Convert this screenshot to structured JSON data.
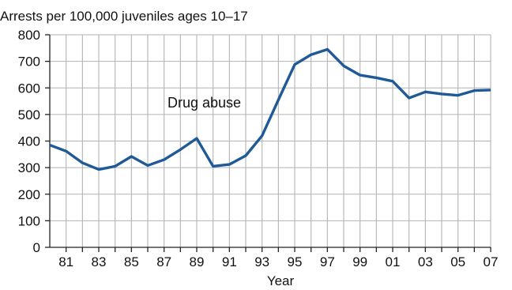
{
  "chart_data": {
    "type": "line",
    "title": "Arrests per 100,000 juveniles ages 10–17",
    "xlabel": "Year",
    "ylabel": "",
    "ylim": [
      0,
      800
    ],
    "y_ticks": [
      0,
      100,
      200,
      300,
      400,
      500,
      600,
      700,
      800
    ],
    "x_range": [
      1980,
      2007
    ],
    "x_tick_labels": [
      "81",
      "83",
      "85",
      "87",
      "89",
      "91",
      "93",
      "95",
      "97",
      "99",
      "01",
      "03",
      "05",
      "07"
    ],
    "x_tick_years": [
      1981,
      1983,
      1985,
      1987,
      1989,
      1991,
      1993,
      1995,
      1997,
      1999,
      2001,
      2003,
      2005,
      2007
    ],
    "grid": true,
    "line_color": "#1f5a96",
    "grid_color": "#b3b3b3",
    "series": [
      {
        "name": "Drug abuse",
        "x": [
          1980,
          1981,
          1982,
          1983,
          1984,
          1985,
          1986,
          1987,
          1988,
          1989,
          1990,
          1991,
          1992,
          1993,
          1994,
          1995,
          1996,
          1997,
          1998,
          1999,
          2000,
          2001,
          2002,
          2003,
          2004,
          2005,
          2006,
          2007
        ],
        "values": [
          385,
          362,
          318,
          293,
          305,
          342,
          308,
          330,
          368,
          410,
          305,
          312,
          345,
          420,
          555,
          688,
          725,
          745,
          683,
          648,
          638,
          625,
          562,
          585,
          577,
          572,
          590,
          592
        ]
      }
    ]
  }
}
